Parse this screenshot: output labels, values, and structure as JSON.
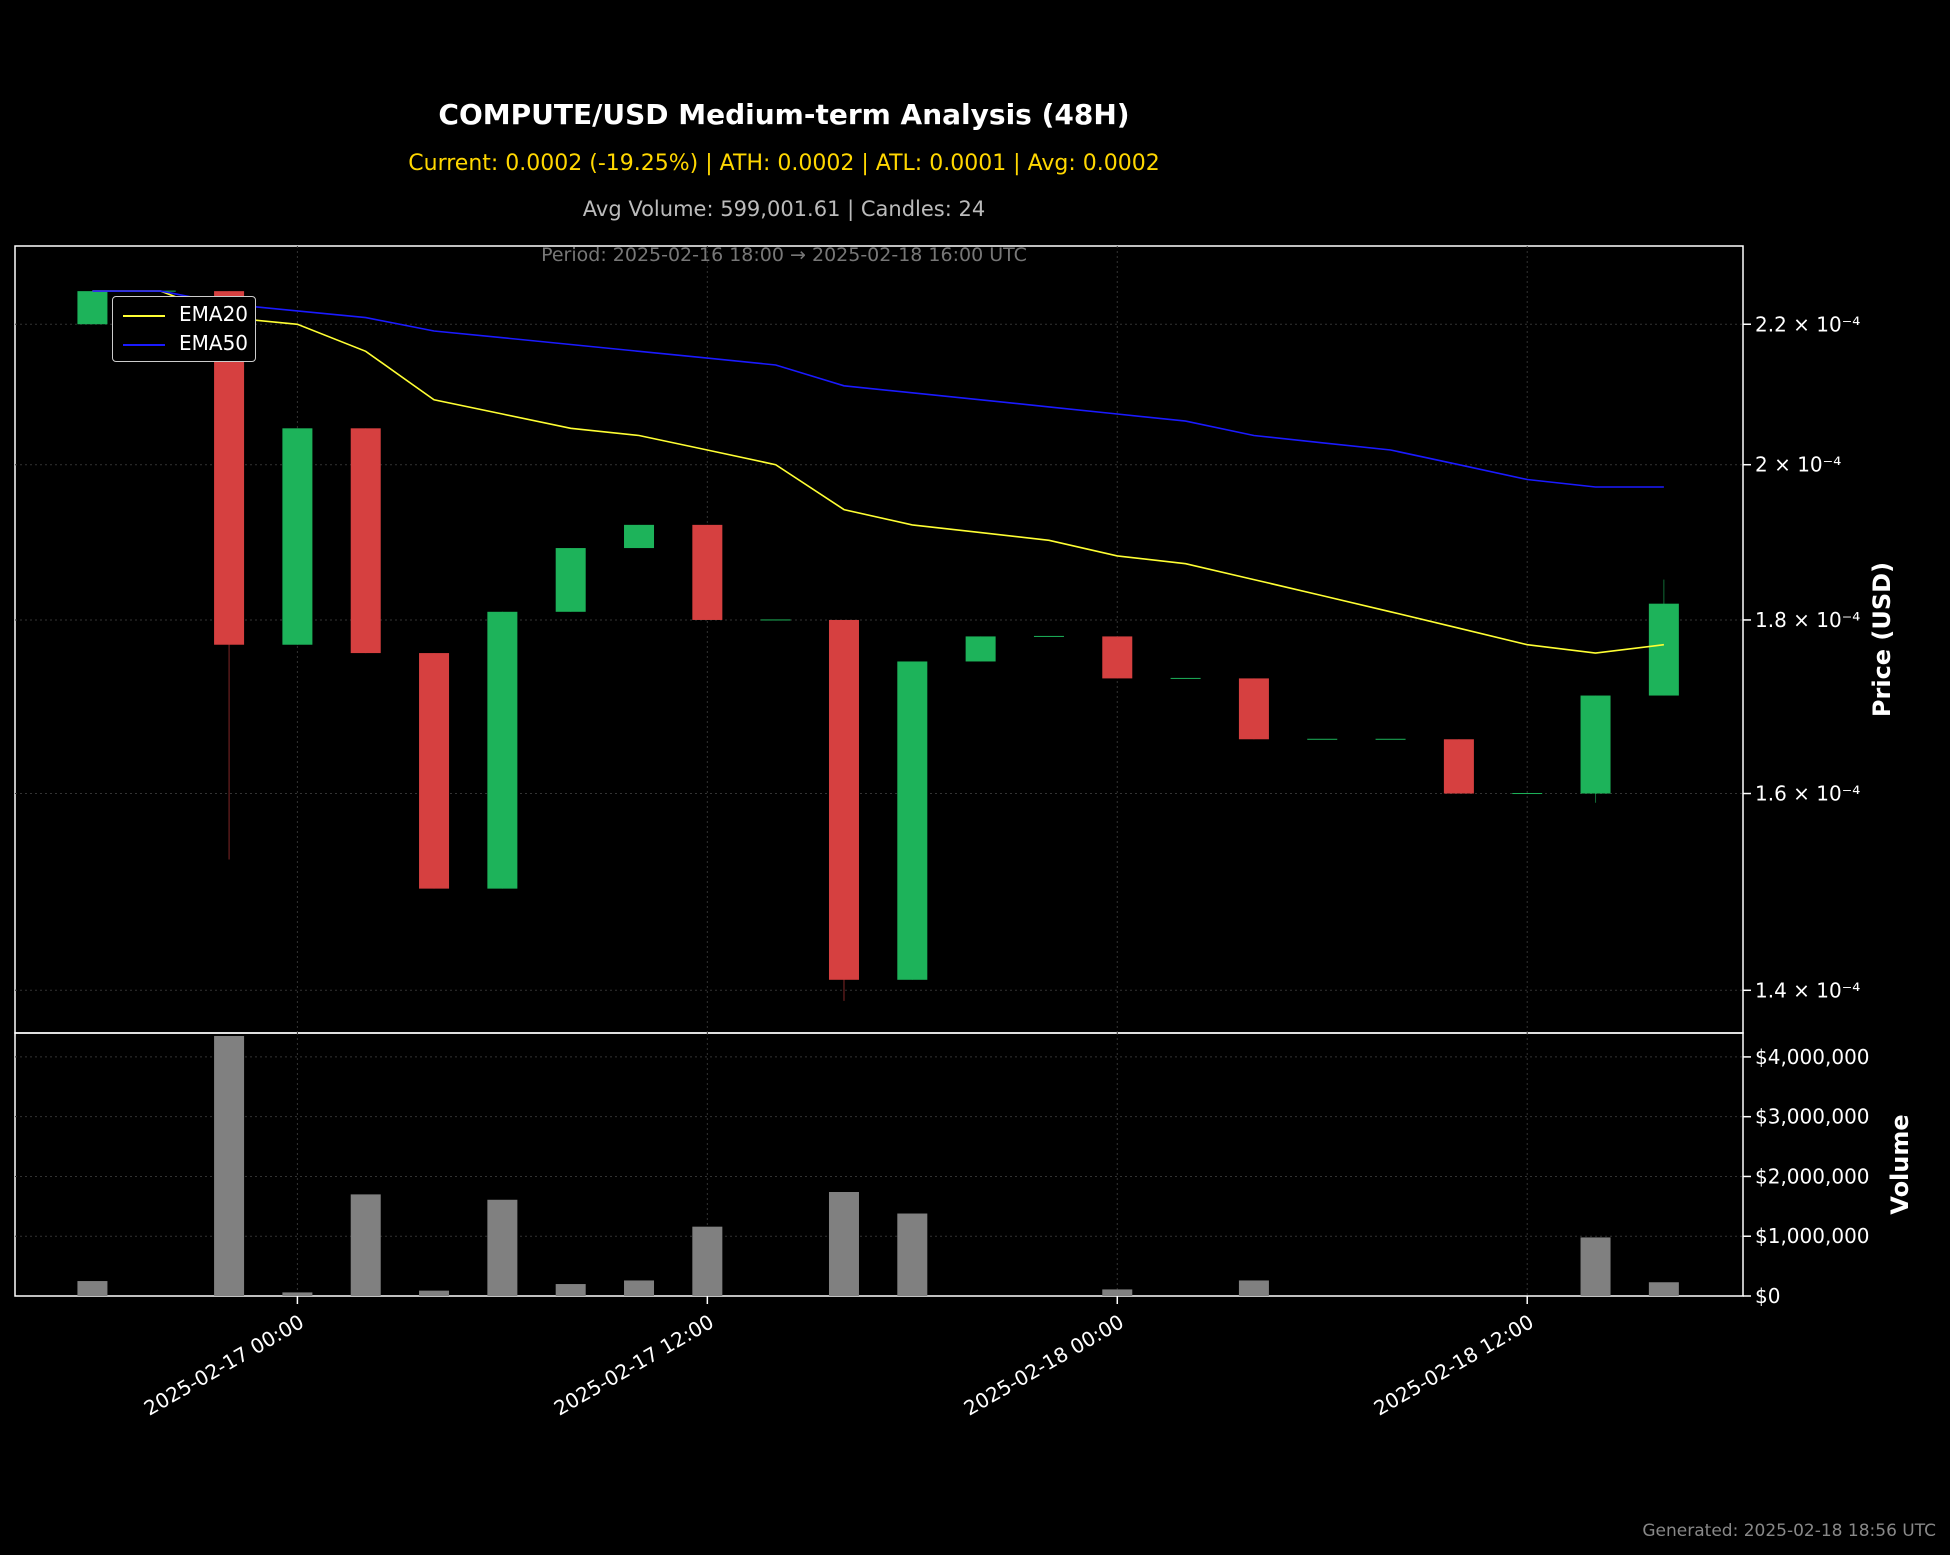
{
  "header": {
    "title": "COMPUTE/USD Medium-term Analysis (48H)",
    "subtitle": "Current: 0.0002 (-19.25%) | ATH: 0.0002 | ATL: 0.0001 | Avg: 0.0002",
    "volume_line": "Avg Volume: 599,001.61 | Candles: 24",
    "period_line": "Period: 2025-02-16 18:00 → 2025-02-18 16:00 UTC"
  },
  "footer": {
    "generated": "Generated: 2025-02-18 18:56 UTC"
  },
  "colors": {
    "up": "#1db35a",
    "down": "#d64040",
    "ema20": "#ffff33",
    "ema50": "#1a1aff",
    "volume": "#808080",
    "grid": "#333333",
    "axis": "#ffffff"
  },
  "legend": [
    {
      "label": "EMA20",
      "color": "#ffff33"
    },
    {
      "label": "EMA50",
      "color": "#1a1aff"
    }
  ],
  "chart_data": [
    {
      "type": "candlestick",
      "ylabel": "Price (USD)",
      "yscale": "log",
      "ylim": [
        0.000136,
        0.000232
      ],
      "yticks": [
        0.00014,
        0.00016,
        0.00018,
        0.0002,
        0.00022
      ],
      "yticklabels": [
        "1.4 × 10⁻⁴",
        "1.6 × 10⁻⁴",
        "1.8 × 10⁻⁴",
        "2 × 10⁻⁴",
        "2.2 × 10⁻⁴"
      ],
      "xlim": [
        "2025-02-16 15:44",
        "2025-02-18 18:19"
      ],
      "xticks": [
        "2025-02-17 00:00",
        "2025-02-17 12:00",
        "2025-02-18 00:00",
        "2025-02-18 12:00"
      ],
      "xticklabels": [
        "2025-02-17 00:00",
        "2025-02-17 12:00",
        "2025-02-18 00:00",
        "2025-02-18 12:00"
      ],
      "grid": true,
      "legend_position": "upper-left",
      "candles": [
        {
          "t": "2025-02-16 18:00",
          "open": 0.00022,
          "high": 0.000225,
          "low": 0.00022,
          "close": 0.000225
        },
        {
          "t": "2025-02-16 20:00",
          "open": 0.000225,
          "high": 0.000225,
          "low": 0.000225,
          "close": 0.000225
        },
        {
          "t": "2025-02-16 22:00",
          "open": 0.000225,
          "high": 0.000225,
          "low": 0.000153,
          "close": 0.000177
        },
        {
          "t": "2025-02-17 00:00",
          "open": 0.000177,
          "high": 0.000205,
          "low": 0.000177,
          "close": 0.000205
        },
        {
          "t": "2025-02-17 02:00",
          "open": 0.000205,
          "high": 0.000205,
          "low": 0.000176,
          "close": 0.000176
        },
        {
          "t": "2025-02-17 04:00",
          "open": 0.000176,
          "high": 0.000176,
          "low": 0.00015,
          "close": 0.00015
        },
        {
          "t": "2025-02-17 06:00",
          "open": 0.00015,
          "high": 0.000181,
          "low": 0.00015,
          "close": 0.000181
        },
        {
          "t": "2025-02-17 08:00",
          "open": 0.000181,
          "high": 0.000189,
          "low": 0.000181,
          "close": 0.000189
        },
        {
          "t": "2025-02-17 10:00",
          "open": 0.000189,
          "high": 0.000192,
          "low": 0.000189,
          "close": 0.000192
        },
        {
          "t": "2025-02-17 12:00",
          "open": 0.000192,
          "high": 0.000192,
          "low": 0.00018,
          "close": 0.00018
        },
        {
          "t": "2025-02-17 14:00",
          "open": 0.00018,
          "high": 0.00018,
          "low": 0.00018,
          "close": 0.00018
        },
        {
          "t": "2025-02-17 16:00",
          "open": 0.00018,
          "high": 0.00018,
          "low": 0.000139,
          "close": 0.000141
        },
        {
          "t": "2025-02-17 18:00",
          "open": 0.000141,
          "high": 0.000175,
          "low": 0.000141,
          "close": 0.000175
        },
        {
          "t": "2025-02-17 20:00",
          "open": 0.000175,
          "high": 0.000178,
          "low": 0.000175,
          "close": 0.000178
        },
        {
          "t": "2025-02-17 22:00",
          "open": 0.000178,
          "high": 0.000178,
          "low": 0.000178,
          "close": 0.000178
        },
        {
          "t": "2025-02-18 00:00",
          "open": 0.000178,
          "high": 0.000178,
          "low": 0.000173,
          "close": 0.000173
        },
        {
          "t": "2025-02-18 02:00",
          "open": 0.000173,
          "high": 0.000173,
          "low": 0.000173,
          "close": 0.000173
        },
        {
          "t": "2025-02-18 04:00",
          "open": 0.000173,
          "high": 0.000173,
          "low": 0.000166,
          "close": 0.000166
        },
        {
          "t": "2025-02-18 06:00",
          "open": 0.000166,
          "high": 0.000166,
          "low": 0.000166,
          "close": 0.000166
        },
        {
          "t": "2025-02-18 08:00",
          "open": 0.000166,
          "high": 0.000166,
          "low": 0.000166,
          "close": 0.000166
        },
        {
          "t": "2025-02-18 10:00",
          "open": 0.000166,
          "high": 0.000166,
          "low": 0.00016,
          "close": 0.00016
        },
        {
          "t": "2025-02-18 12:00",
          "open": 0.00016,
          "high": 0.00016,
          "low": 0.00016,
          "close": 0.00016
        },
        {
          "t": "2025-02-18 14:00",
          "open": 0.00016,
          "high": 0.000171,
          "low": 0.000159,
          "close": 0.000171
        },
        {
          "t": "2025-02-18 16:00",
          "open": 0.000171,
          "high": 0.000185,
          "low": 0.000171,
          "close": 0.000182
        }
      ],
      "series": [
        {
          "name": "EMA20",
          "values": [
            0.000225,
            0.000225,
            0.000221,
            0.00022,
            0.000216,
            0.000209,
            0.000207,
            0.000205,
            0.000204,
            0.000202,
            0.0002,
            0.000194,
            0.000192,
            0.000191,
            0.00019,
            0.000188,
            0.000187,
            0.000185,
            0.000183,
            0.000181,
            0.000179,
            0.000177,
            0.000176,
            0.000177
          ]
        },
        {
          "name": "EMA50",
          "values": [
            0.000225,
            0.000225,
            0.000223,
            0.000222,
            0.000221,
            0.000219,
            0.000218,
            0.000217,
            0.000216,
            0.000215,
            0.000214,
            0.000211,
            0.00021,
            0.000209,
            0.000208,
            0.000207,
            0.000206,
            0.000204,
            0.000203,
            0.000202,
            0.0002,
            0.000198,
            0.000197,
            0.000197
          ]
        }
      ]
    },
    {
      "type": "bar",
      "ylabel": "Volume",
      "ylim": [
        0,
        4400000
      ],
      "yticks": [
        0,
        1000000,
        2000000,
        3000000,
        4000000
      ],
      "yticklabels": [
        "$0",
        "$1,000,000",
        "$2,000,000",
        "$3,000,000",
        "$4,000,000"
      ],
      "grid": true,
      "categories": [
        "2025-02-16 18:00",
        "2025-02-16 20:00",
        "2025-02-16 22:00",
        "2025-02-17 00:00",
        "2025-02-17 02:00",
        "2025-02-17 04:00",
        "2025-02-17 06:00",
        "2025-02-17 08:00",
        "2025-02-17 10:00",
        "2025-02-17 12:00",
        "2025-02-17 14:00",
        "2025-02-17 16:00",
        "2025-02-17 18:00",
        "2025-02-17 20:00",
        "2025-02-17 22:00",
        "2025-02-18 00:00",
        "2025-02-18 02:00",
        "2025-02-18 04:00",
        "2025-02-18 06:00",
        "2025-02-18 08:00",
        "2025-02-18 10:00",
        "2025-02-18 12:00",
        "2025-02-18 14:00",
        "2025-02-18 16:00"
      ],
      "values": [
        250000,
        0,
        4350000,
        60000,
        1700000,
        90000,
        1610000,
        200000,
        260000,
        1160000,
        0,
        1740000,
        1380000,
        0,
        0,
        110000,
        0,
        260000,
        0,
        0,
        0,
        0,
        980000,
        230000
      ]
    }
  ]
}
